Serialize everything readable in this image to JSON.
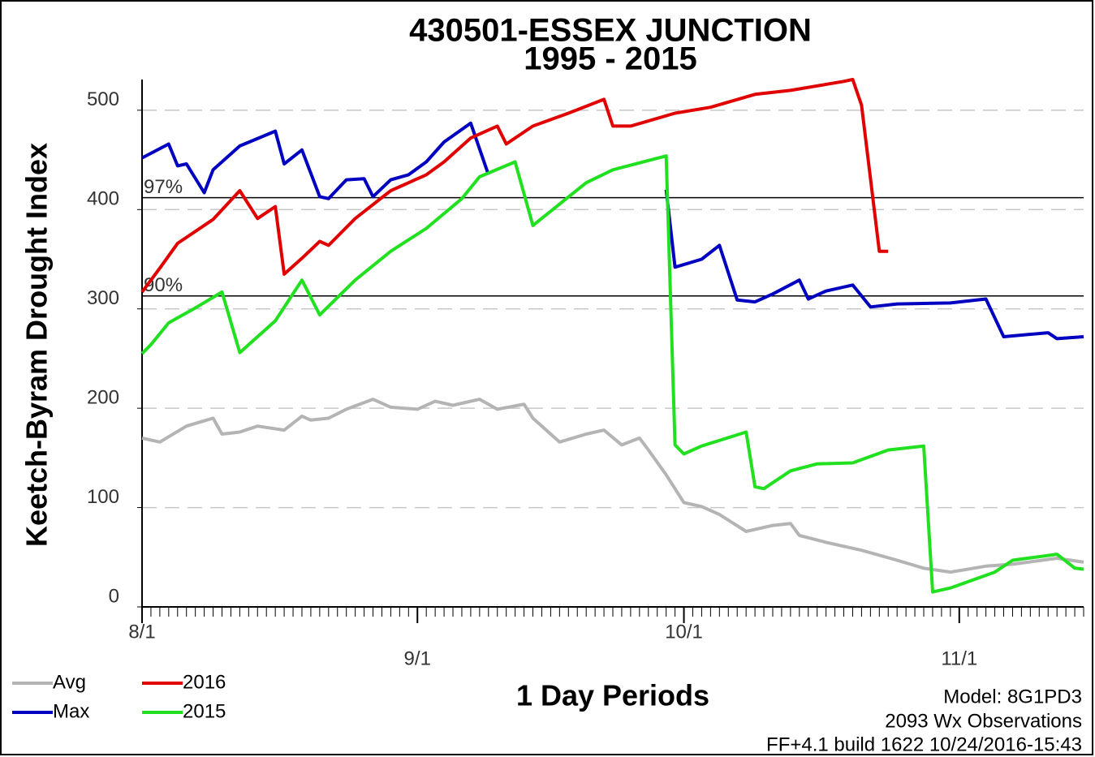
{
  "chart_data": {
    "type": "line",
    "title": "430501-ESSEX JUNCTION",
    "subtitle": "1995 - 2015",
    "y_label": "Keetch-Byram Drought Index",
    "x_label": "1 Day Periods",
    "notes": [
      "Model: 8G1PD3",
      "2093 Wx Observations",
      "FF+4.1 build 1622 10/24/2016-15:43"
    ],
    "xlim": [
      0,
      106
    ],
    "xticks": [
      {
        "value": 0,
        "label": "8/1"
      },
      {
        "value": 31,
        "label": "9/1"
      },
      {
        "value": 61,
        "label": "10/1"
      },
      {
        "value": 92,
        "label": "11/1"
      }
    ],
    "ylim": [
      0,
      535
    ],
    "yticks": [
      0,
      100,
      200,
      300,
      400,
      500
    ],
    "grid": true,
    "reference_lines": [
      {
        "label": "97%",
        "value": 412
      },
      {
        "label": "90%",
        "value": 313
      }
    ],
    "series": [
      {
        "name": "Avg",
        "color": "#b4b4b4",
        "x": [
          0,
          2,
          5,
          8,
          9,
          11,
          13,
          16,
          18,
          19,
          21,
          23,
          26,
          28,
          31,
          33,
          35,
          38,
          40,
          43,
          44,
          47,
          50,
          52,
          54,
          56,
          57,
          59,
          61,
          63,
          65,
          68,
          71,
          73,
          74,
          77,
          81,
          85,
          88,
          91,
          95,
          98,
          103,
          106
        ],
        "values": [
          170,
          166,
          182,
          190,
          174,
          176,
          182,
          178,
          192,
          188,
          190,
          199,
          209,
          201,
          199,
          207,
          203,
          209,
          199,
          204,
          190,
          166,
          174,
          178,
          163,
          170,
          158,
          133,
          105,
          101,
          93,
          76,
          82,
          84,
          72,
          65,
          57,
          47,
          39,
          35,
          41,
          43,
          49,
          45
        ]
      },
      {
        "name": "Max",
        "color": "#0000c0",
        "x": [
          0,
          3,
          4,
          5,
          7,
          8,
          11,
          15,
          16,
          18,
          20,
          21,
          23,
          25,
          26,
          28,
          30,
          32,
          34,
          37,
          39,
          49,
          59,
          60,
          63,
          65,
          67,
          69,
          71,
          74,
          75,
          77,
          80,
          82,
          85,
          91,
          95,
          97,
          102,
          103,
          106
        ],
        "values": [
          452,
          466,
          444,
          446,
          417,
          440,
          464,
          479,
          446,
          460,
          413,
          411,
          430,
          431,
          413,
          430,
          435,
          448,
          468,
          487,
          435,
          null,
          420,
          342,
          350,
          364,
          309,
          307,
          315,
          329,
          310,
          318,
          324,
          302,
          305,
          306,
          310,
          272,
          276,
          270,
          272
        ]
      },
      {
        "name": "2016",
        "color": "#e00000",
        "x": [
          0,
          2,
          4,
          8,
          11,
          13,
          15,
          16,
          18,
          20,
          21,
          24,
          28,
          32,
          34,
          37,
          40,
          41,
          44,
          48,
          52,
          53,
          55,
          60,
          64,
          69,
          73,
          79,
          80,
          81,
          83,
          84
        ],
        "values": [
          317,
          341,
          366,
          390,
          419,
          391,
          403,
          335,
          351,
          368,
          364,
          391,
          419,
          435,
          448,
          472,
          484,
          466,
          484,
          497,
          511,
          484,
          484,
          497,
          503,
          516,
          520,
          529,
          531,
          505,
          358,
          358
        ]
      },
      {
        "name": "2015",
        "color": "#20e020",
        "x": [
          0,
          1,
          3,
          6,
          9,
          11,
          15,
          18,
          20,
          24,
          28,
          32,
          36,
          38,
          42,
          44,
          50,
          53,
          59,
          60,
          61,
          63,
          68,
          69,
          70,
          73,
          76,
          80,
          84,
          88,
          89,
          91,
          96,
          98,
          103,
          105,
          106
        ],
        "values": [
          255,
          264,
          286,
          301,
          317,
          256,
          288,
          329,
          294,
          329,
          358,
          381,
          411,
          433,
          448,
          384,
          427,
          440,
          454,
          163,
          154,
          162,
          176,
          121,
          119,
          137,
          144,
          145,
          158,
          162,
          15,
          19,
          35,
          47,
          53,
          39,
          38
        ]
      }
    ]
  }
}
